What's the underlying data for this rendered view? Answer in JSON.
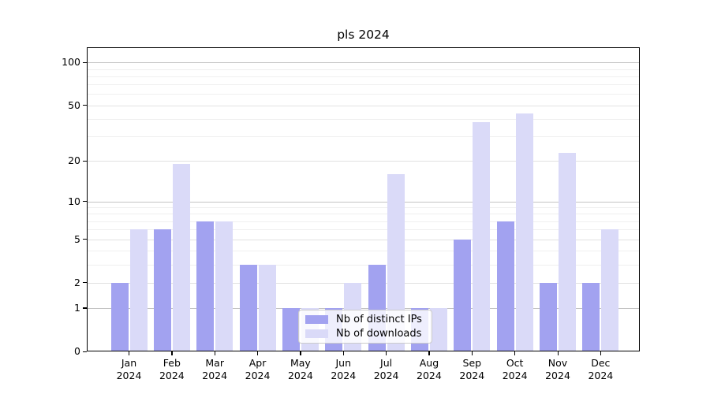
{
  "chart_data": {
    "type": "bar",
    "title": "pls 2024",
    "categories": [
      "Jan",
      "Feb",
      "Mar",
      "Apr",
      "May",
      "Jun",
      "Jul",
      "Aug",
      "Sep",
      "Oct",
      "Nov",
      "Dec"
    ],
    "tick_year": "2024",
    "series": [
      {
        "name": "Nb of distinct IPs",
        "color": "#a2a2f0",
        "values": [
          2,
          6,
          7,
          3,
          1,
          1,
          3,
          1,
          5,
          7,
          2,
          2
        ]
      },
      {
        "name": "Nb of downloads",
        "color": "#dadaf8",
        "values": [
          6,
          19,
          7,
          3,
          1,
          2,
          16,
          1,
          38,
          44,
          23,
          6
        ]
      }
    ],
    "yticks": [
      0,
      1,
      2,
      5,
      10,
      20,
      50,
      100
    ],
    "yscale": "log1p",
    "ylim": [
      0,
      128
    ],
    "grid": "on",
    "legend_position": "lower-center",
    "xlabel": "",
    "ylabel": ""
  }
}
